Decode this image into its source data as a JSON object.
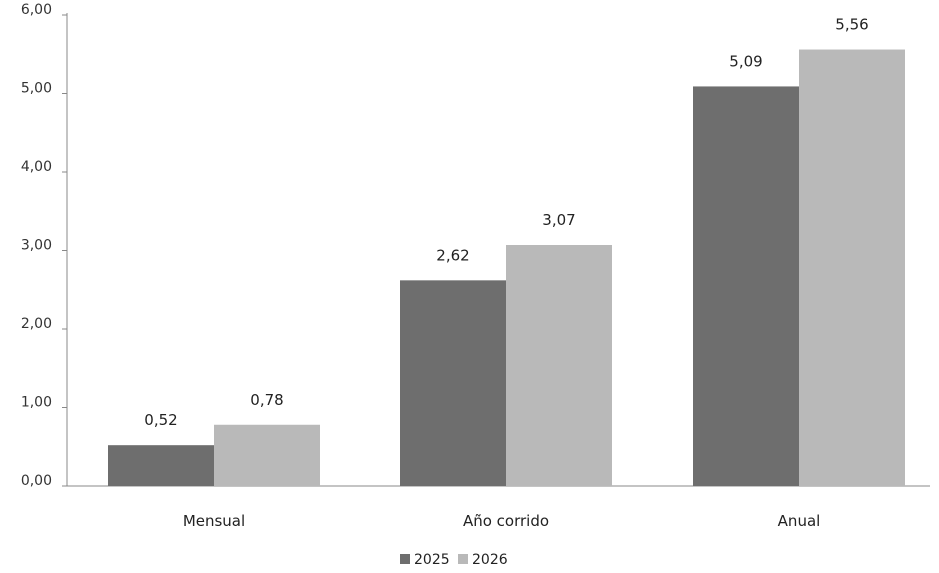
{
  "chart_data": {
    "type": "bar",
    "categories": [
      "Mensual",
      "Año corrido",
      "Anual"
    ],
    "series": [
      {
        "name": "2025",
        "values": [
          0.52,
          2.62,
          5.09
        ],
        "labels": [
          "0,52",
          "2,62",
          "5,09"
        ],
        "color": "#6e6e6e"
      },
      {
        "name": "2026",
        "values": [
          0.78,
          3.07,
          5.56
        ],
        "labels": [
          "0,78",
          "3,07",
          "5,56"
        ],
        "color": "#b9b9b9"
      }
    ],
    "yticks": [
      0,
      1,
      2,
      3,
      4,
      5,
      6
    ],
    "ytick_labels": [
      "0,00",
      "1,00",
      "2,00",
      "3,00",
      "4,00",
      "5,00",
      "6,00"
    ],
    "ylim": [
      0,
      6
    ],
    "grid": false,
    "legend_position": "bottom-center"
  }
}
